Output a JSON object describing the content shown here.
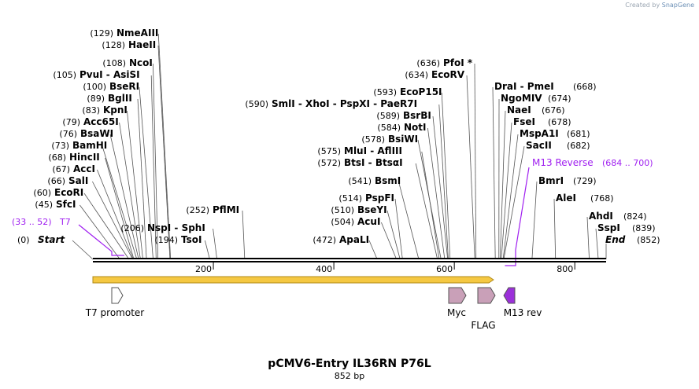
{
  "credit": {
    "prefix": "Created by",
    "brand": "SnapGene"
  },
  "plasmid": {
    "name": "pCMV6-Entry IL36RN P76L",
    "length_label": "852 bp"
  },
  "sequence": {
    "length": 852,
    "start_label": "Start",
    "end_label": "End",
    "start_pos": "(0)",
    "end_pos": "(852)"
  },
  "ticks": [
    200,
    400,
    600,
    800
  ],
  "primer_sites": [
    {
      "name": "T7",
      "range": "(33 .. 52)",
      "color": "#a020f0"
    },
    {
      "name": "M13 Reverse",
      "range": "(684 .. 700)",
      "color": "#a020f0"
    }
  ],
  "sites": [
    {
      "name": "NmeAIII",
      "pos": 129,
      "label": "(129)"
    },
    {
      "name": "HaeII",
      "pos": 128,
      "label": "(128)"
    },
    {
      "name": "NcoI",
      "pos": 108,
      "label": "(108)"
    },
    {
      "name": "PvuI - AsiSI",
      "pos": 105,
      "label": "(105)"
    },
    {
      "name": "BseRI",
      "pos": 100,
      "label": "(100)"
    },
    {
      "name": "BglII",
      "pos": 89,
      "label": "(89)"
    },
    {
      "name": "KpnI",
      "pos": 83,
      "label": "(83)"
    },
    {
      "name": "Acc65I",
      "pos": 79,
      "label": "(79)"
    },
    {
      "name": "BsaWI",
      "pos": 76,
      "label": "(76)"
    },
    {
      "name": "BamHI",
      "pos": 73,
      "label": "(73)"
    },
    {
      "name": "HincII",
      "pos": 68,
      "label": "(68)"
    },
    {
      "name": "AccI",
      "pos": 67,
      "label": "(67)"
    },
    {
      "name": "SalI",
      "pos": 66,
      "label": "(66)"
    },
    {
      "name": "EcoRI",
      "pos": 60,
      "label": "(60)"
    },
    {
      "name": "SfcI",
      "pos": 45,
      "label": "(45)"
    },
    {
      "name": "NspI - SphI",
      "pos": 206,
      "label": "(206)"
    },
    {
      "name": "TsoI",
      "pos": 194,
      "label": "(194)"
    },
    {
      "name": "PflMI",
      "pos": 252,
      "label": "(252)"
    },
    {
      "name": "SmlI - XhoI - PspXI - PaeR7I",
      "pos": 590,
      "label": "(590)"
    },
    {
      "name": "EcoP15I",
      "pos": 593,
      "label": "(593)"
    },
    {
      "name": "BsrBI",
      "pos": 589,
      "label": "(589)"
    },
    {
      "name": "NotI",
      "pos": 584,
      "label": "(584)"
    },
    {
      "name": "BsiWI",
      "pos": 578,
      "label": "(578)"
    },
    {
      "name": "MluI - AflIII",
      "pos": 575,
      "label": "(575)"
    },
    {
      "name": "BtsI - BtsαI",
      "pos": 572,
      "label": "(572)"
    },
    {
      "name": "BsmI",
      "pos": 541,
      "label": "(541)"
    },
    {
      "name": "PspFI",
      "pos": 514,
      "label": "(514)"
    },
    {
      "name": "BseYI",
      "pos": 510,
      "label": "(510)"
    },
    {
      "name": "AcuI",
      "pos": 504,
      "label": "(504)"
    },
    {
      "name": "ApaLI",
      "pos": 472,
      "label": "(472)"
    },
    {
      "name": "PfoI *",
      "pos": 636,
      "label": "(636)"
    },
    {
      "name": "EcoRV",
      "pos": 634,
      "label": "(634)"
    },
    {
      "name": "DraI - PmeI",
      "pos": 668,
      "label": "(668)"
    },
    {
      "name": "NgoMIV",
      "pos": 674,
      "label": "(674)"
    },
    {
      "name": "NaeI",
      "pos": 676,
      "label": "(676)"
    },
    {
      "name": "FseI",
      "pos": 678,
      "label": "(678)"
    },
    {
      "name": "MspA1I",
      "pos": 681,
      "label": "(681)"
    },
    {
      "name": "SacII",
      "pos": 682,
      "label": "(682)"
    },
    {
      "name": "BmrI",
      "pos": 729,
      "label": "(729)"
    },
    {
      "name": "AleI",
      "pos": 768,
      "label": "(768)"
    },
    {
      "name": "AhdI",
      "pos": 824,
      "label": "(824)"
    },
    {
      "name": "SspI",
      "pos": 839,
      "label": "(839)"
    }
  ],
  "orf": {
    "start": 0,
    "end": 665,
    "fill": "#f5c842",
    "stroke": "#b08a1a"
  },
  "features": [
    {
      "name": "T7 promoter",
      "start": 33,
      "end": 52,
      "direction": "forward",
      "color": "#ffffff"
    },
    {
      "name": "Myc",
      "start": 593,
      "end": 623,
      "direction": "forward",
      "color": "#c9a0b8"
    },
    {
      "name": "FLAG",
      "start": 635,
      "end": 659,
      "direction": "forward",
      "color": "#c9a0b8"
    },
    {
      "name": "M13 rev",
      "start": 684,
      "end": 700,
      "direction": "reverse",
      "color": "#9b30d9"
    }
  ]
}
